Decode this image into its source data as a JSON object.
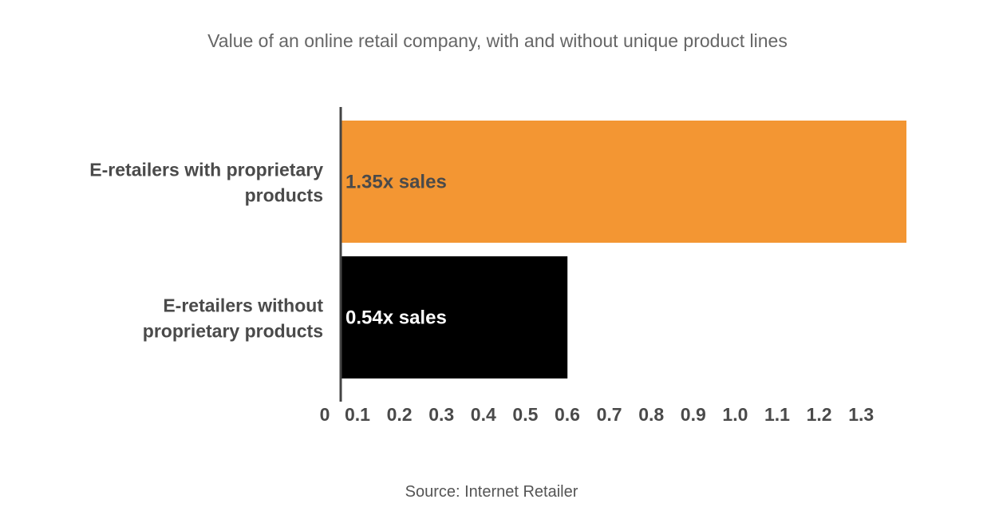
{
  "chart_data": {
    "type": "bar",
    "orientation": "horizontal",
    "title": "Value of an online retail company, with and without unique product lines",
    "source": "Source: Internet Retailer",
    "xlabel": "",
    "ylabel": "",
    "xlim": [
      0,
      1.35
    ],
    "x_ticks": [
      "0",
      "0.1",
      "0.2",
      "0.3",
      "0.4",
      "0.5",
      "0.6",
      "0.7",
      "0.8",
      "0.9",
      "1.0",
      "1.1",
      "1.2",
      "1.3"
    ],
    "grid": false,
    "legend": "none",
    "categories": [
      [
        "E-retailers with proprietary",
        "products"
      ],
      [
        "E-retailers without",
        "proprietary products"
      ]
    ],
    "values": [
      1.35,
      0.54
    ],
    "data_labels": [
      "1.35x sales",
      "0.54x sales"
    ],
    "bar_colors": [
      "#f39633",
      "#000000"
    ],
    "data_label_colors": [
      "#4a4a4a",
      "#ffffff"
    ],
    "axis_color": "#444444",
    "text_color": "#4a4a4a"
  }
}
